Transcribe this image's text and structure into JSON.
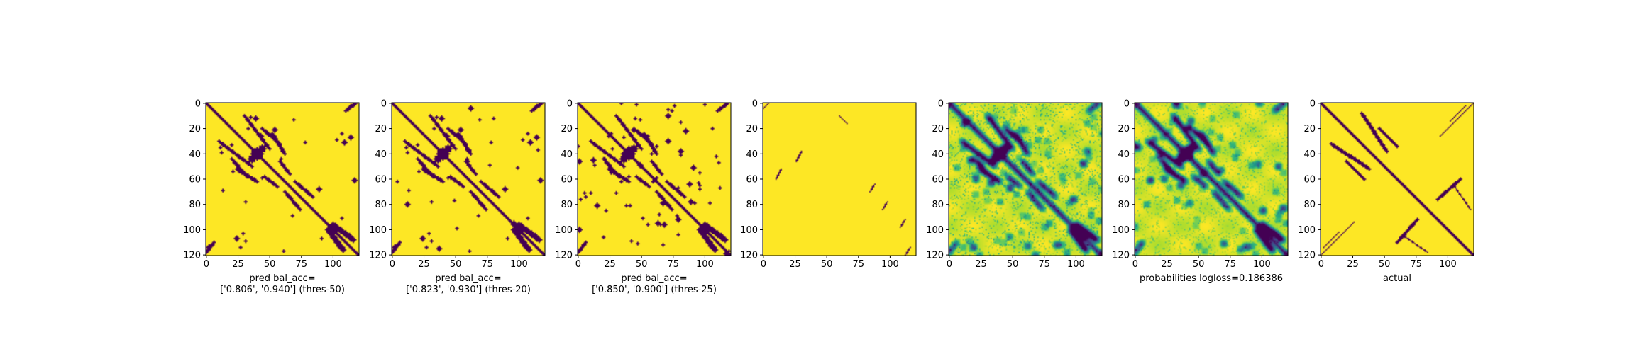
{
  "colors": {
    "low": "#440154",
    "high": "#fde725",
    "colormap": "viridis",
    "axis": "#000000",
    "background": "#ffffff"
  },
  "chart_data": [
    {
      "type": "heatmap",
      "render": "binary",
      "variant": "pred50",
      "xlabel": "pred bal_acc=\n['0.806', '0.940'] (thres-50)",
      "xticks": [
        0,
        25,
        50,
        75,
        100
      ],
      "yticks": [
        0,
        20,
        40,
        60,
        80,
        100,
        120
      ],
      "xlim": [
        0,
        121
      ],
      "ylim": [
        121,
        0
      ]
    },
    {
      "type": "heatmap",
      "render": "binary",
      "variant": "pred20",
      "xlabel": "pred bal_acc=\n['0.823', '0.930'] (thres-20)",
      "xticks": [
        0,
        25,
        50,
        75,
        100
      ],
      "yticks": [
        0,
        20,
        40,
        60,
        80,
        100,
        120
      ],
      "xlim": [
        0,
        121
      ],
      "ylim": [
        121,
        0
      ]
    },
    {
      "type": "heatmap",
      "render": "binary",
      "variant": "pred25",
      "xlabel": "pred bal_acc=\n['0.850', '0.900'] (thres-25)",
      "xticks": [
        0,
        25,
        50,
        75,
        100
      ],
      "yticks": [
        0,
        20,
        40,
        60,
        80,
        100,
        120
      ],
      "xlim": [
        0,
        121
      ],
      "ylim": [
        121,
        0
      ]
    },
    {
      "type": "heatmap",
      "render": "binary",
      "variant": "sparse",
      "xlabel": "",
      "xticks": [
        0,
        25,
        50,
        75,
        100
      ],
      "yticks": [
        0,
        20,
        40,
        60,
        80,
        100,
        120
      ],
      "xlim": [
        0,
        121
      ],
      "ylim": [
        121,
        0
      ]
    },
    {
      "type": "heatmap",
      "render": "continuous",
      "variant": "prob_noise",
      "xlabel": "",
      "xticks": [
        0,
        25,
        50,
        75,
        100
      ],
      "yticks": [
        0,
        20,
        40,
        60,
        80,
        100,
        120
      ],
      "xlim": [
        0,
        121
      ],
      "ylim": [
        121,
        0
      ]
    },
    {
      "type": "heatmap",
      "render": "continuous",
      "variant": "prob",
      "xlabel": "probabilities logloss=0.186386",
      "xticks": [
        0,
        25,
        50,
        75,
        100
      ],
      "yticks": [
        0,
        20,
        40,
        60,
        80,
        100,
        120
      ],
      "xlim": [
        0,
        121
      ],
      "ylim": [
        121,
        0
      ]
    },
    {
      "type": "heatmap",
      "render": "binary",
      "variant": "actual",
      "xlabel": "actual",
      "xticks": [
        0,
        25,
        50,
        75,
        100
      ],
      "yticks": [
        0,
        20,
        40,
        60,
        80,
        100,
        120
      ],
      "xlim": [
        0,
        121
      ],
      "ylim": [
        121,
        0
      ]
    }
  ]
}
